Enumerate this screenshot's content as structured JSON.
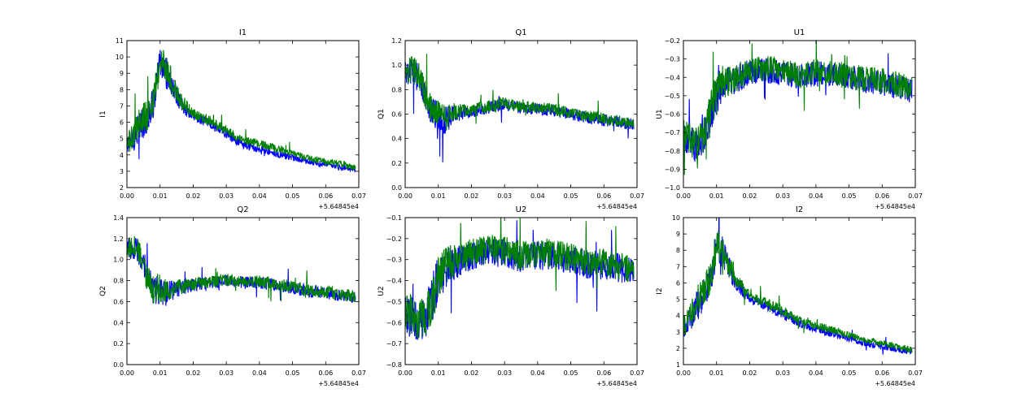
{
  "figure": {
    "background": "#ffffff"
  },
  "colors": {
    "series_1": "#0000ff",
    "series_2": "#008000"
  },
  "chart_data": [
    {
      "type": "line",
      "title": "I1",
      "xlabel": "",
      "ylabel": "I1",
      "offset_label": "+5.64845e4",
      "xlim": [
        0,
        0.07
      ],
      "ylim": [
        2,
        11
      ],
      "xticks": [
        0,
        0.01,
        0.02,
        0.03,
        0.04,
        0.05,
        0.06,
        0.07
      ],
      "xtick_labels": [
        "0.00",
        "0.01",
        "0.02",
        "0.03",
        "0.04",
        "0.05",
        "0.06",
        "0.07"
      ],
      "yticks": [
        2,
        3,
        4,
        5,
        6,
        7,
        8,
        9,
        10,
        11
      ],
      "ytick_labels": [
        "2",
        "3",
        "4",
        "5",
        "6",
        "7",
        "8",
        "9",
        "10",
        "11"
      ],
      "grid": false,
      "legend": "none",
      "series": [
        {
          "color": "#0000ff",
          "x": [
            0,
            0.002,
            0.004,
            0.006,
            0.008,
            0.01,
            0.012,
            0.014,
            0.016,
            0.02,
            0.025,
            0.03,
            0.035,
            0.04,
            0.045,
            0.05,
            0.055,
            0.06,
            0.065,
            0.069
          ],
          "y": [
            4.5,
            5,
            5.8,
            6.2,
            7.2,
            9.5,
            9,
            8,
            7.2,
            6.3,
            5.9,
            5.3,
            4.6,
            4.4,
            4.1,
            3.8,
            3.6,
            3.4,
            3.2,
            3.1
          ],
          "noise": [
            0.7,
            0.8,
            1,
            1,
            1,
            1.1,
            1,
            0.7,
            0.5,
            0.3,
            0.3,
            0.3,
            0.25,
            0.25,
            0.25,
            0.2,
            0.2,
            0.2,
            0.2,
            0.2
          ]
        },
        {
          "color": "#008000",
          "x": [
            0,
            0.002,
            0.004,
            0.006,
            0.008,
            0.01,
            0.012,
            0.014,
            0.016,
            0.02,
            0.025,
            0.03,
            0.035,
            0.04,
            0.045,
            0.05,
            0.055,
            0.06,
            0.065,
            0.069
          ],
          "y": [
            4.6,
            5.2,
            6,
            6.4,
            7.4,
            9.7,
            9.2,
            8.2,
            7.4,
            6.5,
            6.1,
            5.5,
            4.9,
            4.7,
            4.4,
            4.1,
            3.8,
            3.6,
            3.4,
            3.2
          ],
          "noise": [
            0.7,
            0.8,
            1,
            1,
            1,
            1.1,
            1,
            0.7,
            0.5,
            0.3,
            0.3,
            0.3,
            0.25,
            0.25,
            0.25,
            0.2,
            0.2,
            0.2,
            0.2,
            0.2
          ]
        }
      ]
    },
    {
      "type": "line",
      "title": "Q1",
      "xlabel": "",
      "ylabel": "Q1",
      "offset_label": "+5.64845e4",
      "xlim": [
        0,
        0.07
      ],
      "ylim": [
        0,
        1.2
      ],
      "xticks": [
        0,
        0.01,
        0.02,
        0.03,
        0.04,
        0.05,
        0.06,
        0.07
      ],
      "xtick_labels": [
        "0.00",
        "0.01",
        "0.02",
        "0.03",
        "0.04",
        "0.05",
        "0.06",
        "0.07"
      ],
      "yticks": [
        0,
        0.2,
        0.4,
        0.6,
        0.8,
        1.0,
        1.2
      ],
      "ytick_labels": [
        "0.0",
        "0.2",
        "0.4",
        "0.6",
        "0.8",
        "1.0",
        "1.2"
      ],
      "grid": false,
      "legend": "none",
      "series": [
        {
          "color": "#0000ff",
          "x": [
            0,
            0.002,
            0.004,
            0.006,
            0.008,
            0.01,
            0.012,
            0.015,
            0.02,
            0.025,
            0.03,
            0.035,
            0.04,
            0.045,
            0.05,
            0.055,
            0.06,
            0.065,
            0.069
          ],
          "y": [
            0.95,
            0.95,
            0.9,
            0.75,
            0.62,
            0.58,
            0.55,
            0.6,
            0.62,
            0.65,
            0.68,
            0.65,
            0.64,
            0.63,
            0.6,
            0.57,
            0.55,
            0.53,
            0.52
          ],
          "noise": [
            0.1,
            0.12,
            0.12,
            0.12,
            0.12,
            0.12,
            0.12,
            0.07,
            0.05,
            0.05,
            0.05,
            0.05,
            0.05,
            0.05,
            0.05,
            0.05,
            0.05,
            0.05,
            0.05
          ]
        },
        {
          "color": "#008000",
          "x": [
            0,
            0.002,
            0.004,
            0.006,
            0.008,
            0.01,
            0.012,
            0.015,
            0.02,
            0.025,
            0.03,
            0.035,
            0.04,
            0.045,
            0.05,
            0.055,
            0.06,
            0.065,
            0.069
          ],
          "y": [
            0.96,
            0.96,
            0.92,
            0.76,
            0.64,
            0.6,
            0.57,
            0.62,
            0.64,
            0.66,
            0.69,
            0.66,
            0.65,
            0.64,
            0.61,
            0.58,
            0.56,
            0.54,
            0.53
          ],
          "noise": [
            0.1,
            0.12,
            0.12,
            0.12,
            0.12,
            0.12,
            0.12,
            0.07,
            0.05,
            0.05,
            0.05,
            0.05,
            0.05,
            0.05,
            0.05,
            0.05,
            0.05,
            0.05,
            0.05
          ]
        }
      ]
    },
    {
      "type": "line",
      "title": "U1",
      "xlabel": "",
      "ylabel": "U1",
      "offset_label": "+5.64845e4",
      "xlim": [
        0,
        0.07
      ],
      "ylim": [
        -1.0,
        -0.2
      ],
      "xticks": [
        0,
        0.01,
        0.02,
        0.03,
        0.04,
        0.05,
        0.06,
        0.07
      ],
      "xtick_labels": [
        "0.00",
        "0.01",
        "0.02",
        "0.03",
        "0.04",
        "0.05",
        "0.06",
        "0.07"
      ],
      "yticks": [
        -1.0,
        -0.9,
        -0.8,
        -0.7,
        -0.6,
        -0.5,
        -0.4,
        -0.3,
        -0.2
      ],
      "ytick_labels": [
        "−1.0",
        "−0.9",
        "−0.8",
        "−0.7",
        "−0.6",
        "−0.5",
        "−0.4",
        "−0.3",
        "−0.2"
      ],
      "grid": false,
      "legend": "none",
      "series": [
        {
          "color": "#0000ff",
          "x": [
            0,
            0.002,
            0.004,
            0.006,
            0.008,
            0.01,
            0.012,
            0.015,
            0.02,
            0.025,
            0.03,
            0.035,
            0.04,
            0.045,
            0.05,
            0.055,
            0.06,
            0.065,
            0.069
          ],
          "y": [
            -0.72,
            -0.75,
            -0.78,
            -0.72,
            -0.62,
            -0.5,
            -0.44,
            -0.42,
            -0.37,
            -0.36,
            -0.38,
            -0.4,
            -0.38,
            -0.39,
            -0.4,
            -0.42,
            -0.43,
            -0.45,
            -0.48
          ],
          "noise": [
            0.08,
            0.1,
            0.1,
            0.1,
            0.12,
            0.12,
            0.1,
            0.08,
            0.07,
            0.07,
            0.07,
            0.07,
            0.07,
            0.07,
            0.07,
            0.07,
            0.07,
            0.07,
            0.07
          ]
        },
        {
          "color": "#008000",
          "x": [
            0,
            0.002,
            0.004,
            0.006,
            0.008,
            0.01,
            0.012,
            0.015,
            0.02,
            0.025,
            0.03,
            0.035,
            0.04,
            0.045,
            0.05,
            0.055,
            0.06,
            0.065,
            0.069
          ],
          "y": [
            -0.71,
            -0.74,
            -0.77,
            -0.71,
            -0.61,
            -0.49,
            -0.43,
            -0.41,
            -0.36,
            -0.35,
            -0.37,
            -0.39,
            -0.37,
            -0.38,
            -0.39,
            -0.41,
            -0.42,
            -0.44,
            -0.47
          ],
          "noise": [
            0.08,
            0.1,
            0.1,
            0.1,
            0.12,
            0.12,
            0.1,
            0.08,
            0.07,
            0.07,
            0.07,
            0.07,
            0.07,
            0.07,
            0.07,
            0.07,
            0.07,
            0.07,
            0.07
          ]
        }
      ]
    },
    {
      "type": "line",
      "title": "Q2",
      "xlabel": "",
      "ylabel": "Q2",
      "offset_label": "+5.64845e4",
      "xlim": [
        0,
        0.07
      ],
      "ylim": [
        0,
        1.4
      ],
      "xticks": [
        0,
        0.01,
        0.02,
        0.03,
        0.04,
        0.05,
        0.06,
        0.07
      ],
      "xtick_labels": [
        "0.00",
        "0.01",
        "0.02",
        "0.03",
        "0.04",
        "0.05",
        "0.06",
        "0.07"
      ],
      "yticks": [
        0,
        0.2,
        0.4,
        0.6,
        0.8,
        1.0,
        1.2,
        1.4
      ],
      "ytick_labels": [
        "0.0",
        "0.2",
        "0.4",
        "0.6",
        "0.8",
        "1.0",
        "1.2",
        "1.4"
      ],
      "grid": false,
      "legend": "none",
      "series": [
        {
          "color": "#0000ff",
          "x": [
            0,
            0.002,
            0.004,
            0.006,
            0.008,
            0.01,
            0.012,
            0.015,
            0.02,
            0.025,
            0.03,
            0.035,
            0.04,
            0.045,
            0.05,
            0.055,
            0.06,
            0.065,
            0.069
          ],
          "y": [
            1.1,
            1.12,
            1.05,
            0.82,
            0.72,
            0.7,
            0.68,
            0.72,
            0.76,
            0.78,
            0.8,
            0.78,
            0.78,
            0.76,
            0.73,
            0.7,
            0.68,
            0.66,
            0.64
          ],
          "noise": [
            0.1,
            0.12,
            0.12,
            0.12,
            0.15,
            0.15,
            0.12,
            0.08,
            0.06,
            0.06,
            0.06,
            0.06,
            0.06,
            0.06,
            0.06,
            0.06,
            0.06,
            0.06,
            0.06
          ]
        },
        {
          "color": "#008000",
          "x": [
            0,
            0.002,
            0.004,
            0.006,
            0.008,
            0.01,
            0.012,
            0.015,
            0.02,
            0.025,
            0.03,
            0.035,
            0.04,
            0.045,
            0.05,
            0.055,
            0.06,
            0.065,
            0.069
          ],
          "y": [
            1.11,
            1.13,
            1.06,
            0.83,
            0.73,
            0.71,
            0.69,
            0.73,
            0.77,
            0.79,
            0.81,
            0.79,
            0.79,
            0.77,
            0.74,
            0.71,
            0.69,
            0.67,
            0.65
          ],
          "noise": [
            0.1,
            0.12,
            0.12,
            0.12,
            0.15,
            0.15,
            0.12,
            0.08,
            0.06,
            0.06,
            0.06,
            0.06,
            0.06,
            0.06,
            0.06,
            0.06,
            0.06,
            0.06,
            0.06
          ]
        }
      ]
    },
    {
      "type": "line",
      "title": "U2",
      "xlabel": "",
      "ylabel": "U2",
      "offset_label": "+5.64845e4",
      "xlim": [
        0,
        0.07
      ],
      "ylim": [
        -0.8,
        -0.1
      ],
      "xticks": [
        0,
        0.01,
        0.02,
        0.03,
        0.04,
        0.05,
        0.06,
        0.07
      ],
      "xtick_labels": [
        "0.00",
        "0.01",
        "0.02",
        "0.03",
        "0.04",
        "0.05",
        "0.06",
        "0.07"
      ],
      "yticks": [
        -0.8,
        -0.7,
        -0.6,
        -0.5,
        -0.4,
        -0.3,
        -0.2,
        -0.1
      ],
      "ytick_labels": [
        "−0.8",
        "−0.7",
        "−0.6",
        "−0.5",
        "−0.4",
        "−0.3",
        "−0.2",
        "−0.1"
      ],
      "grid": false,
      "legend": "none",
      "series": [
        {
          "color": "#0000ff",
          "x": [
            0,
            0.002,
            0.004,
            0.006,
            0.008,
            0.01,
            0.012,
            0.015,
            0.02,
            0.025,
            0.03,
            0.035,
            0.04,
            0.045,
            0.05,
            0.055,
            0.06,
            0.065,
            0.069
          ],
          "y": [
            -0.55,
            -0.58,
            -0.6,
            -0.58,
            -0.5,
            -0.4,
            -0.34,
            -0.32,
            -0.28,
            -0.26,
            -0.27,
            -0.29,
            -0.28,
            -0.28,
            -0.3,
            -0.32,
            -0.33,
            -0.34,
            -0.36
          ],
          "noise": [
            0.1,
            0.1,
            0.1,
            0.1,
            0.12,
            0.12,
            0.1,
            0.08,
            0.07,
            0.07,
            0.07,
            0.07,
            0.07,
            0.07,
            0.07,
            0.07,
            0.07,
            0.07,
            0.07
          ]
        },
        {
          "color": "#008000",
          "x": [
            0,
            0.002,
            0.004,
            0.006,
            0.008,
            0.01,
            0.012,
            0.015,
            0.02,
            0.025,
            0.03,
            0.035,
            0.04,
            0.045,
            0.05,
            0.055,
            0.06,
            0.065,
            0.069
          ],
          "y": [
            -0.54,
            -0.57,
            -0.59,
            -0.57,
            -0.49,
            -0.39,
            -0.33,
            -0.31,
            -0.27,
            -0.25,
            -0.26,
            -0.28,
            -0.27,
            -0.27,
            -0.29,
            -0.31,
            -0.32,
            -0.33,
            -0.35
          ],
          "noise": [
            0.1,
            0.1,
            0.1,
            0.1,
            0.12,
            0.12,
            0.1,
            0.08,
            0.07,
            0.07,
            0.07,
            0.07,
            0.07,
            0.07,
            0.07,
            0.07,
            0.07,
            0.07,
            0.07
          ]
        }
      ]
    },
    {
      "type": "line",
      "title": "I2",
      "xlabel": "",
      "ylabel": "I2",
      "offset_label": "+5.64845e4",
      "xlim": [
        0,
        0.07
      ],
      "ylim": [
        1,
        10
      ],
      "xticks": [
        0,
        0.01,
        0.02,
        0.03,
        0.04,
        0.05,
        0.06,
        0.07
      ],
      "xtick_labels": [
        "0.00",
        "0.01",
        "0.02",
        "0.03",
        "0.04",
        "0.05",
        "0.06",
        "0.07"
      ],
      "yticks": [
        1,
        2,
        3,
        4,
        5,
        6,
        7,
        8,
        9,
        10
      ],
      "ytick_labels": [
        "1",
        "2",
        "3",
        "4",
        "5",
        "6",
        "7",
        "8",
        "9",
        "10"
      ],
      "grid": false,
      "legend": "none",
      "series": [
        {
          "color": "#0000ff",
          "x": [
            0,
            0.002,
            0.004,
            0.006,
            0.008,
            0.01,
            0.012,
            0.014,
            0.016,
            0.02,
            0.025,
            0.03,
            0.035,
            0.04,
            0.045,
            0.05,
            0.055,
            0.06,
            0.065,
            0.069
          ],
          "y": [
            3.2,
            3.8,
            4.6,
            5.2,
            6.0,
            8.2,
            7.8,
            6.8,
            6.0,
            5.0,
            4.6,
            4.1,
            3.5,
            3.2,
            2.9,
            2.6,
            2.3,
            2.1,
            1.9,
            1.8
          ],
          "noise": [
            0.7,
            0.8,
            1,
            1,
            1,
            1.1,
            1,
            0.7,
            0.5,
            0.3,
            0.3,
            0.3,
            0.25,
            0.25,
            0.25,
            0.2,
            0.2,
            0.2,
            0.2,
            0.2
          ]
        },
        {
          "color": "#008000",
          "x": [
            0,
            0.002,
            0.004,
            0.006,
            0.008,
            0.01,
            0.012,
            0.014,
            0.016,
            0.02,
            0.025,
            0.03,
            0.035,
            0.04,
            0.045,
            0.05,
            0.055,
            0.06,
            0.065,
            0.069
          ],
          "y": [
            3.3,
            3.9,
            4.8,
            5.4,
            6.2,
            8.4,
            8.0,
            7.0,
            6.2,
            5.2,
            4.8,
            4.3,
            3.7,
            3.4,
            3.1,
            2.8,
            2.5,
            2.3,
            2.1,
            1.9
          ],
          "noise": [
            0.7,
            0.8,
            1,
            1,
            1,
            1.1,
            1,
            0.7,
            0.5,
            0.3,
            0.3,
            0.3,
            0.25,
            0.25,
            0.25,
            0.2,
            0.2,
            0.2,
            0.2,
            0.2
          ]
        }
      ]
    }
  ]
}
